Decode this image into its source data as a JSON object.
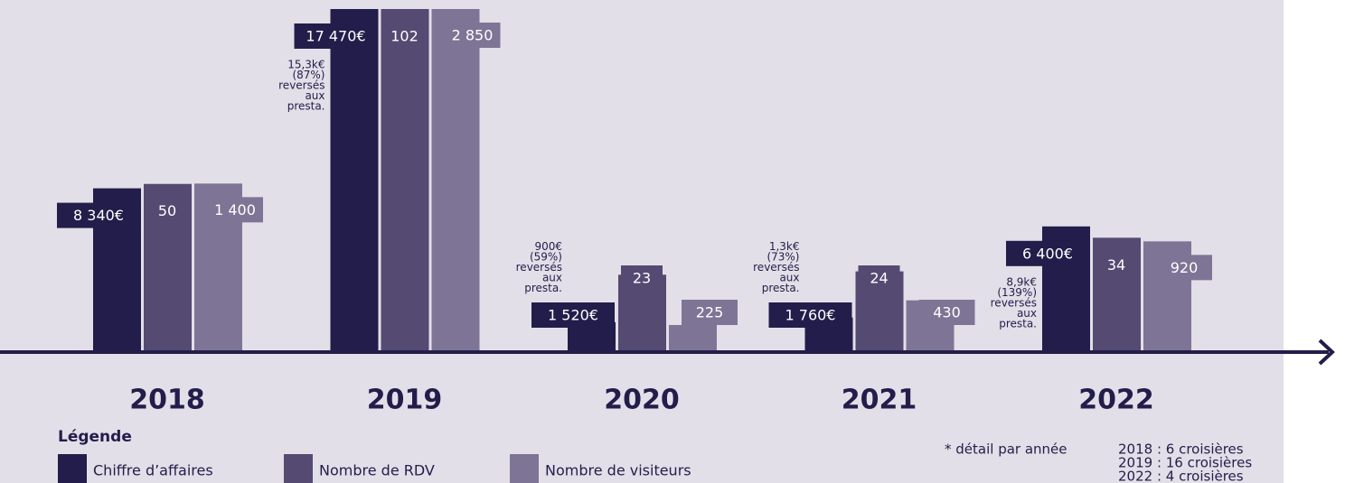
{
  "chart_data": {
    "type": "bar",
    "categories": [
      "2018",
      "2019",
      "2020",
      "2021",
      "2022"
    ],
    "series": [
      {
        "name": "Chiffre d’affaires",
        "color": "#231d4b",
        "values": [
          8340,
          17470,
          1520,
          1760,
          6400
        ],
        "value_labels": [
          "8 340€",
          "17 470€",
          "1 520€",
          "1 760€",
          "6 400€"
        ]
      },
      {
        "name": "Nombre de RDV",
        "color": "#554a72",
        "values": [
          50,
          102,
          23,
          24,
          34
        ]
      },
      {
        "name": "Nombre de visiteurs",
        "color": "#7e7596",
        "values": [
          1400,
          2850,
          225,
          430,
          920
        ],
        "value_labels": [
          "1 400",
          "2 850",
          "225",
          "430",
          "920"
        ]
      }
    ],
    "annotations": [
      null,
      [
        "15,3k€",
        "(87%)",
        "reversés",
        "aux",
        "presta."
      ],
      [
        "900€",
        "(59%)",
        "reversés",
        "aux",
        "presta."
      ],
      [
        "1,3k€",
        "(73%)",
        "reversés",
        "aux",
        "presta."
      ],
      [
        "8,9k€",
        "(139%)",
        "reversés",
        "aux",
        "presta."
      ]
    ],
    "legend_title": "Légende",
    "footnote": "* détail par année",
    "footnote_details": [
      "2018 : 6 croisières",
      "2019 : 16 croisières",
      "2022 : 4 croisières"
    ]
  }
}
